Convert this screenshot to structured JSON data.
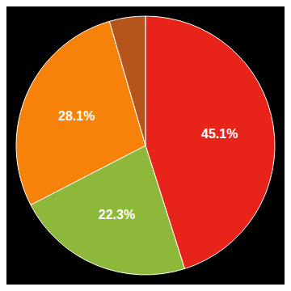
{
  "chart_data": {
    "type": "pie",
    "values": [
      45.1,
      22.3,
      28.1,
      4.5
    ],
    "value_labels": [
      "45.1%",
      "22.3%",
      "28.1%",
      null
    ],
    "colors": [
      "#e8231a",
      "#8db83a",
      "#f7820a",
      "#b5541b"
    ],
    "data_labels": true
  }
}
